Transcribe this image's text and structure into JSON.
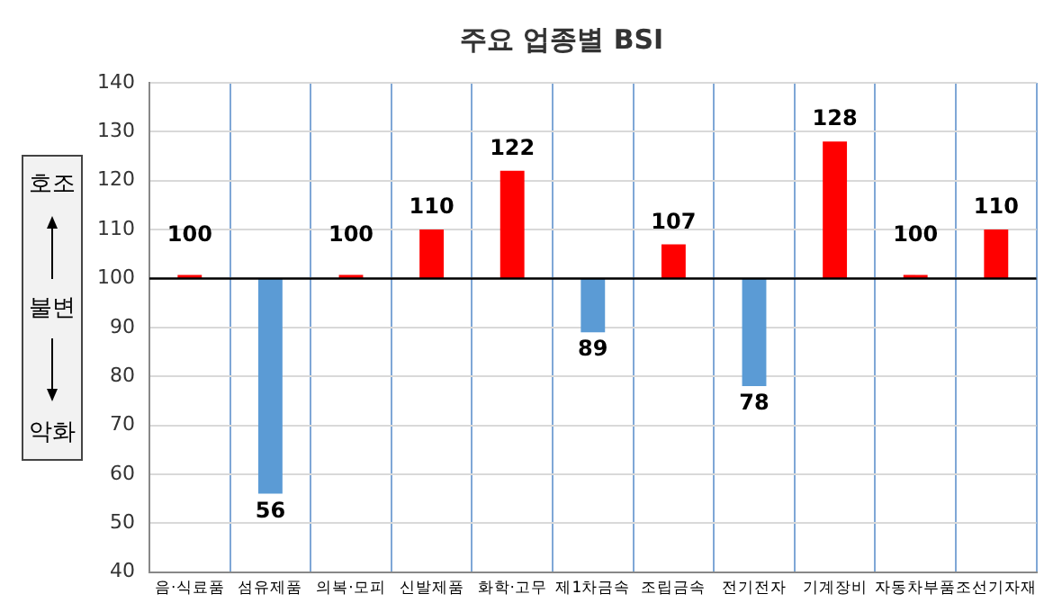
{
  "chart_data": {
    "type": "bar",
    "title": "주요 업종별 BSI",
    "categories": [
      "음·식료품",
      "섬유제품",
      "의복·모피",
      "신발제품",
      "화학·고무",
      "제1차금속",
      "조립금속",
      "전기전자",
      "기계장비",
      "자동차부품",
      "조선기자재"
    ],
    "base": [
      100,
      100,
      100,
      100,
      100,
      100,
      100,
      100,
      100,
      100,
      100
    ],
    "values": [
      0,
      -44,
      0,
      10,
      22,
      -11,
      7,
      -22,
      28,
      0,
      10
    ],
    "value_labels": [
      "100",
      "56",
      "100",
      "110",
      "122",
      "89",
      "107",
      "78",
      "128",
      "100",
      "110"
    ],
    "colors": [
      "#ff0000",
      "#5b9bd5",
      "#ff0000",
      "#ff0000",
      "#ff0000",
      "#5b9bd5",
      "#ff0000",
      "#5b9bd5",
      "#ff0000",
      "#ff0000",
      "#ff0000"
    ],
    "ylim": [
      40,
      140
    ],
    "yticks": [
      40,
      50,
      60,
      70,
      80,
      90,
      100,
      110,
      120,
      130,
      140
    ],
    "grid": true,
    "ref_lines": [
      {
        "axis": "y",
        "value": 100,
        "color": "#000000"
      }
    ],
    "annotations": [
      "호조",
      "불변",
      "악화"
    ]
  }
}
